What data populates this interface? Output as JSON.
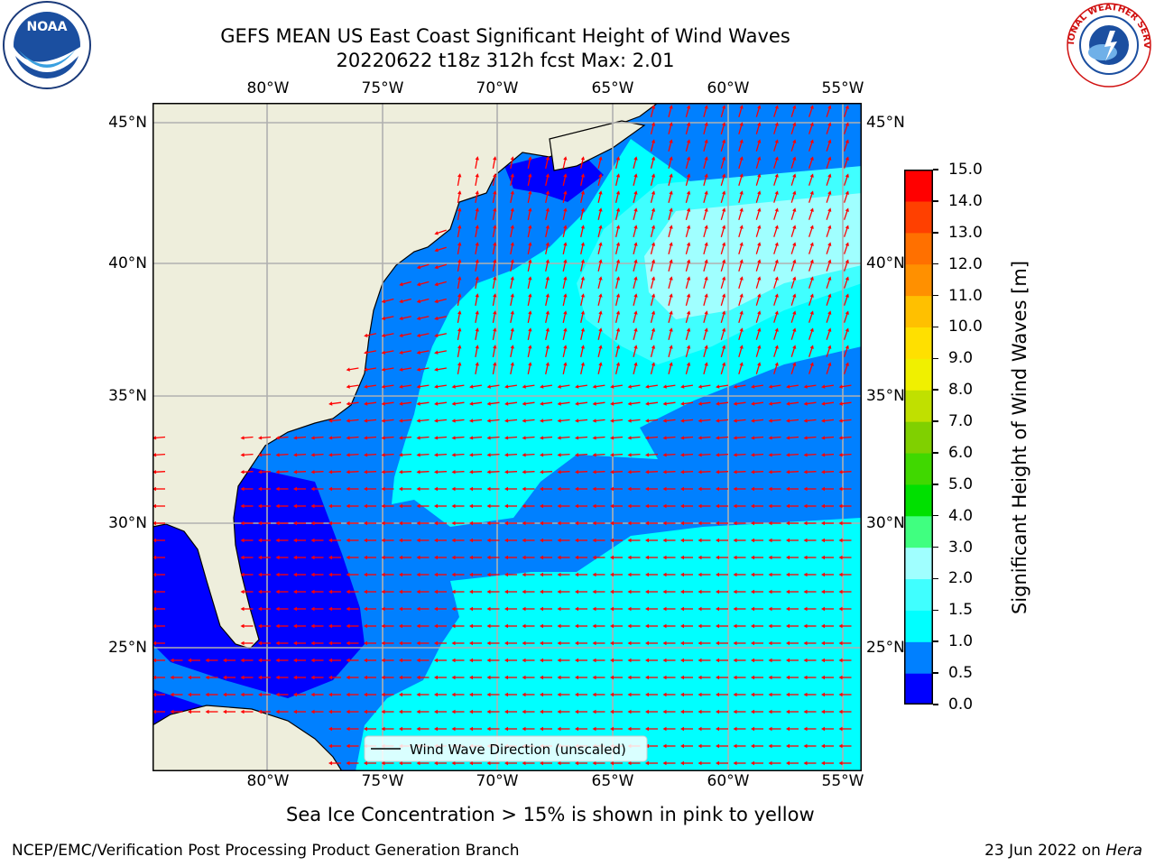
{
  "header": {
    "title_line1": "GEFS MEAN US East Coast Significant Height of Wind Waves",
    "title_line2": "20220622 t18z 312h fcst   Max: 2.01"
  },
  "logos": {
    "noaa_text": "NOAA",
    "nws_text": "NATIONAL WEATHER SERVICE"
  },
  "map": {
    "lon_labels": [
      "80°W",
      "75°W",
      "70°W",
      "65°W",
      "60°W",
      "55°W"
    ],
    "lat_labels": [
      "45°N",
      "40°N",
      "35°N",
      "30°N",
      "25°N"
    ],
    "legend_label": "Wind Wave Direction (unscaled)",
    "colors": {
      "land": "#eeeedc",
      "ocean_0_0p5": "#0000ff",
      "ocean_0p5_1": "#0080ff",
      "ocean_1_1p5": "#00ffff",
      "ocean_1p5_2": "#40ffff",
      "ocean_2_3": "#a0ffff",
      "arrow": "#ff0000",
      "grid": "#b0b0b0"
    }
  },
  "colorbar": {
    "label": "Significant Height of Wind Waves [m]",
    "ticks": [
      "0.0",
      "0.5",
      "1.0",
      "1.5",
      "2.0",
      "3.0",
      "4.0",
      "5.0",
      "6.0",
      "7.0",
      "8.0",
      "9.0",
      "10.0",
      "11.0",
      "12.0",
      "13.0",
      "14.0",
      "15.0"
    ],
    "colors": [
      "#0000ff",
      "#0080ff",
      "#00ffff",
      "#40ffff",
      "#a0ffff",
      "#40ff80",
      "#00e000",
      "#40d800",
      "#80d000",
      "#c0e000",
      "#f0f000",
      "#ffe000",
      "#ffc000",
      "#ff9000",
      "#ff7000",
      "#ff4000",
      "#ff0000"
    ]
  },
  "notes": {
    "sea_ice": "Sea Ice Concentration > 15% is shown in pink to yellow"
  },
  "footer": {
    "left": "NCEP/EMC/Verification Post Processing Product Generation Branch",
    "date": "23 Jun 2022 on ",
    "machine": "Hera"
  }
}
